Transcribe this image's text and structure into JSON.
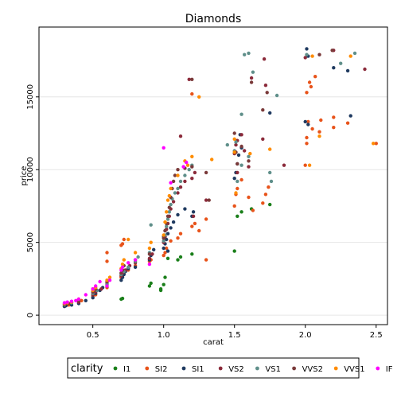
{
  "chart_data": {
    "type": "scatter",
    "title": "Diamonds",
    "xlabel": "carat",
    "ylabel": "price",
    "xlim": [
      0.12,
      2.58
    ],
    "ylim": [
      -650,
      19800
    ],
    "xticks": [
      "0.5",
      "1.0",
      "1.5",
      "2.0",
      "2.5"
    ],
    "yticks": [
      "0",
      "5000",
      "10000",
      "15000"
    ],
    "grid": "horizontal",
    "legend": {
      "title": "clarity",
      "placement": "bottom"
    },
    "series": [
      {
        "name": "I1",
        "color": "#1a7f1a",
        "points": [
          [
            0.7,
            1100
          ],
          [
            0.71,
            1150
          ],
          [
            0.91,
            2200
          ],
          [
            0.98,
            1700
          ],
          [
            0.98,
            1800
          ],
          [
            1.01,
            2600
          ],
          [
            1.03,
            3900
          ],
          [
            1.1,
            3800
          ],
          [
            1.12,
            4000
          ],
          [
            1.2,
            4200
          ],
          [
            1.5,
            4400
          ],
          [
            1.52,
            6800
          ],
          [
            1.55,
            7100
          ],
          [
            1.62,
            7300
          ],
          [
            1.75,
            7600
          ],
          [
            0.9,
            2000
          ],
          [
            1.0,
            2100
          ]
        ]
      },
      {
        "name": "SI2",
        "color": "#e8531a",
        "points": [
          [
            0.3,
            600
          ],
          [
            0.33,
            700
          ],
          [
            0.4,
            900
          ],
          [
            0.42,
            1000
          ],
          [
            0.5,
            1300
          ],
          [
            0.52,
            1400
          ],
          [
            0.6,
            1900
          ],
          [
            0.7,
            2600
          ],
          [
            0.71,
            2700
          ],
          [
            0.72,
            2900
          ],
          [
            0.75,
            3100
          ],
          [
            0.8,
            3400
          ],
          [
            0.9,
            3700
          ],
          [
            0.91,
            3800
          ],
          [
            1.0,
            4100
          ],
          [
            1.01,
            4300
          ],
          [
            1.02,
            4600
          ],
          [
            1.05,
            5100
          ],
          [
            1.1,
            5300
          ],
          [
            1.12,
            5600
          ],
          [
            1.2,
            6100
          ],
          [
            1.22,
            6300
          ],
          [
            1.25,
            5800
          ],
          [
            1.3,
            3800
          ],
          [
            1.3,
            6600
          ],
          [
            1.5,
            7500
          ],
          [
            1.51,
            8300
          ],
          [
            1.52,
            8700
          ],
          [
            1.55,
            9300
          ],
          [
            1.6,
            8100
          ],
          [
            1.63,
            7200
          ],
          [
            1.7,
            7700
          ],
          [
            1.72,
            8300
          ],
          [
            1.74,
            8800
          ],
          [
            2.0,
            10300
          ],
          [
            2.01,
            11800
          ],
          [
            2.01,
            12200
          ],
          [
            2.02,
            13300
          ],
          [
            2.05,
            12800
          ],
          [
            2.1,
            12600
          ],
          [
            2.11,
            13400
          ],
          [
            2.2,
            12900
          ],
          [
            2.2,
            13600
          ],
          [
            2.3,
            13200
          ],
          [
            2.5,
            11800
          ],
          [
            2.03,
            16000
          ],
          [
            2.01,
            15300
          ],
          [
            2.04,
            15700
          ],
          [
            2.07,
            16400
          ],
          [
            1.2,
            15200
          ],
          [
            0.6,
            4300
          ],
          [
            0.7,
            4800
          ],
          [
            0.71,
            4900
          ],
          [
            0.72,
            5200
          ],
          [
            0.6,
            3700
          ],
          [
            0.5,
            1800
          ]
        ]
      },
      {
        "name": "SI1",
        "color": "#1f3a60",
        "points": [
          [
            0.3,
            600
          ],
          [
            0.31,
            650
          ],
          [
            0.35,
            700
          ],
          [
            0.4,
            800
          ],
          [
            0.45,
            1000
          ],
          [
            0.5,
            1200
          ],
          [
            0.52,
            1500
          ],
          [
            0.55,
            1700
          ],
          [
            0.57,
            1900
          ],
          [
            0.6,
            2000
          ],
          [
            0.7,
            2400
          ],
          [
            0.71,
            2600
          ],
          [
            0.72,
            2800
          ],
          [
            0.73,
            3000
          ],
          [
            0.75,
            3200
          ],
          [
            0.8,
            3300
          ],
          [
            0.9,
            3800
          ],
          [
            0.91,
            4100
          ],
          [
            0.93,
            4500
          ],
          [
            1.0,
            4600
          ],
          [
            1.01,
            4900
          ],
          [
            1.02,
            5200
          ],
          [
            1.03,
            5600
          ],
          [
            1.05,
            6000
          ],
          [
            1.07,
            6400
          ],
          [
            1.1,
            6900
          ],
          [
            1.15,
            7300
          ],
          [
            1.2,
            6800
          ],
          [
            1.21,
            7100
          ],
          [
            1.5,
            9400
          ],
          [
            1.51,
            9800
          ],
          [
            1.52,
            10400
          ],
          [
            1.53,
            11000
          ],
          [
            1.55,
            11500
          ],
          [
            1.54,
            12400
          ],
          [
            2.0,
            13300
          ],
          [
            2.02,
            13100
          ],
          [
            2.01,
            18300
          ],
          [
            2.02,
            17800
          ],
          [
            2.2,
            17000
          ],
          [
            2.3,
            16800
          ],
          [
            2.32,
            13700
          ],
          [
            1.75,
            13900
          ],
          [
            1.01,
            5800
          ],
          [
            1.0,
            5400
          ],
          [
            1.03,
            4400
          ]
        ]
      },
      {
        "name": "VS2",
        "color": "#8b2a3a",
        "points": [
          [
            0.3,
            700
          ],
          [
            0.33,
            800
          ],
          [
            0.4,
            900
          ],
          [
            0.5,
            1400
          ],
          [
            0.52,
            1600
          ],
          [
            0.56,
            1800
          ],
          [
            0.6,
            2200
          ],
          [
            0.7,
            2700
          ],
          [
            0.71,
            2900
          ],
          [
            0.73,
            3100
          ],
          [
            0.76,
            3400
          ],
          [
            0.8,
            3600
          ],
          [
            0.9,
            3900
          ],
          [
            0.92,
            4200
          ],
          [
            1.0,
            5000
          ],
          [
            1.01,
            5400
          ],
          [
            1.02,
            5900
          ],
          [
            1.03,
            6300
          ],
          [
            1.04,
            6800
          ],
          [
            1.05,
            7300
          ],
          [
            1.07,
            7800
          ],
          [
            1.1,
            8400
          ],
          [
            1.12,
            8800
          ],
          [
            1.15,
            9200
          ],
          [
            1.2,
            9400
          ],
          [
            1.22,
            9800
          ],
          [
            1.21,
            6800
          ],
          [
            1.3,
            7900
          ],
          [
            1.5,
            11100
          ],
          [
            1.51,
            11700
          ],
          [
            1.52,
            12000
          ],
          [
            1.55,
            12400
          ],
          [
            1.57,
            11300
          ],
          [
            1.6,
            10200
          ],
          [
            1.7,
            12100
          ],
          [
            1.71,
            17600
          ],
          [
            1.72,
            15800
          ],
          [
            1.62,
            16300
          ],
          [
            2.0,
            17700
          ],
          [
            2.2,
            18200
          ],
          [
            2.42,
            16900
          ],
          [
            1.18,
            16200
          ],
          [
            1.12,
            12300
          ],
          [
            1.52,
            9800
          ],
          [
            1.85,
            10300
          ]
        ]
      },
      {
        "name": "VS1",
        "color": "#5f8f8a",
        "points": [
          [
            0.3,
            700
          ],
          [
            0.35,
            850
          ],
          [
            0.4,
            1000
          ],
          [
            0.5,
            1500
          ],
          [
            0.53,
            1700
          ],
          [
            0.6,
            2100
          ],
          [
            0.7,
            2800
          ],
          [
            0.72,
            3000
          ],
          [
            0.75,
            3300
          ],
          [
            0.8,
            3700
          ],
          [
            0.82,
            4000
          ],
          [
            0.9,
            4300
          ],
          [
            0.91,
            6200
          ],
          [
            1.0,
            5100
          ],
          [
            1.01,
            5500
          ],
          [
            1.02,
            6100
          ],
          [
            1.03,
            6600
          ],
          [
            1.04,
            7100
          ],
          [
            1.05,
            7600
          ],
          [
            1.06,
            8000
          ],
          [
            1.08,
            8400
          ],
          [
            1.1,
            8700
          ],
          [
            1.12,
            9200
          ],
          [
            1.15,
            9600
          ],
          [
            1.18,
            10000
          ],
          [
            1.2,
            10300
          ],
          [
            1.5,
            11300
          ],
          [
            1.51,
            11900
          ],
          [
            1.55,
            13800
          ],
          [
            1.57,
            17900
          ],
          [
            1.6,
            18000
          ],
          [
            1.63,
            16700
          ],
          [
            1.75,
            9800
          ],
          [
            1.8,
            15100
          ],
          [
            2.35,
            18000
          ],
          [
            2.25,
            17300
          ],
          [
            2.01,
            17900
          ],
          [
            1.55,
            10300
          ],
          [
            1.52,
            9200
          ],
          [
            1.45,
            11700
          ],
          [
            1.76,
            9200
          ],
          [
            1.6,
            10900
          ]
        ]
      },
      {
        "name": "VVS2",
        "color": "#7a3a3a",
        "points": [
          [
            0.3,
            750
          ],
          [
            0.32,
            800
          ],
          [
            0.4,
            1000
          ],
          [
            0.5,
            1600
          ],
          [
            0.52,
            1800
          ],
          [
            0.6,
            2300
          ],
          [
            0.7,
            2900
          ],
          [
            0.71,
            3100
          ],
          [
            0.72,
            3400
          ],
          [
            0.8,
            3800
          ],
          [
            0.9,
            4200
          ],
          [
            1.0,
            5300
          ],
          [
            1.01,
            5800
          ],
          [
            1.02,
            6300
          ],
          [
            1.03,
            6800
          ],
          [
            1.04,
            7400
          ],
          [
            1.05,
            8100
          ],
          [
            1.06,
            8700
          ],
          [
            1.07,
            9200
          ],
          [
            1.08,
            9600
          ],
          [
            1.1,
            10000
          ],
          [
            1.15,
            10100
          ],
          [
            1.2,
            10200
          ],
          [
            1.3,
            9800
          ],
          [
            1.32,
            7900
          ],
          [
            1.5,
            12500
          ],
          [
            1.51,
            11200
          ],
          [
            1.52,
            10400
          ],
          [
            1.55,
            11600
          ],
          [
            1.6,
            10600
          ],
          [
            1.7,
            14100
          ],
          [
            1.73,
            15300
          ],
          [
            1.2,
            16200
          ],
          [
            2.19,
            18200
          ],
          [
            2.1,
            17900
          ],
          [
            1.62,
            16000
          ]
        ]
      },
      {
        "name": "VVS1",
        "color": "#ff8c00",
        "points": [
          [
            0.3,
            800
          ],
          [
            0.32,
            850
          ],
          [
            0.35,
            900
          ],
          [
            0.4,
            1100
          ],
          [
            0.5,
            1700
          ],
          [
            0.52,
            1900
          ],
          [
            0.6,
            2400
          ],
          [
            0.62,
            2600
          ],
          [
            0.7,
            3200
          ],
          [
            0.71,
            3500
          ],
          [
            0.72,
            3800
          ],
          [
            0.75,
            5200
          ],
          [
            0.8,
            4300
          ],
          [
            0.9,
            4600
          ],
          [
            0.91,
            5000
          ],
          [
            1.0,
            5500
          ],
          [
            1.01,
            6400
          ],
          [
            1.02,
            7100
          ],
          [
            1.03,
            7900
          ],
          [
            1.04,
            8200
          ],
          [
            1.05,
            8700
          ],
          [
            1.1,
            9600
          ],
          [
            1.15,
            10600
          ],
          [
            1.17,
            10300
          ],
          [
            1.2,
            10900
          ],
          [
            1.34,
            10700
          ],
          [
            1.5,
            12100
          ],
          [
            1.5,
            11200
          ],
          [
            1.51,
            8400
          ],
          [
            1.61,
            11100
          ],
          [
            1.75,
            11400
          ],
          [
            2.03,
            10300
          ],
          [
            2.1,
            12300
          ],
          [
            2.32,
            17800
          ],
          [
            2.48,
            11800
          ],
          [
            2.05,
            17800
          ],
          [
            1.25,
            15000
          ]
        ]
      },
      {
        "name": "IF",
        "color": "#ff00ff",
        "points": [
          [
            0.3,
            850
          ],
          [
            0.32,
            900
          ],
          [
            0.35,
            950
          ],
          [
            0.38,
            1000
          ],
          [
            0.4,
            1100
          ],
          [
            0.45,
            1400
          ],
          [
            0.5,
            1800
          ],
          [
            0.52,
            2000
          ],
          [
            0.55,
            2300
          ],
          [
            0.62,
            2400
          ],
          [
            0.7,
            3100
          ],
          [
            0.71,
            3300
          ],
          [
            0.75,
            3600
          ],
          [
            0.8,
            3800
          ],
          [
            1.0,
            11500
          ],
          [
            1.05,
            9100
          ],
          [
            1.14,
            10200
          ],
          [
            1.16,
            10500
          ],
          [
            0.9,
            3500
          ],
          [
            0.6,
            2000
          ]
        ]
      }
    ]
  }
}
